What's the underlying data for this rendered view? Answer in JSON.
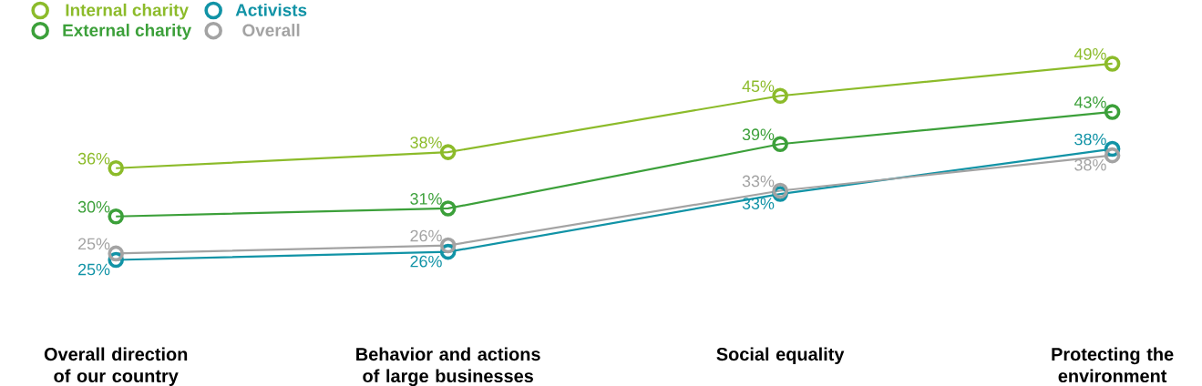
{
  "chart_data": {
    "type": "line",
    "categories": [
      "Overall direction of our country",
      "Behavior and actions of large businesses",
      "Social equality",
      "Protecting the environment"
    ],
    "series": [
      {
        "name": "Internal charity",
        "color": "#8cbb2a",
        "values": [
          36,
          38,
          45,
          49
        ],
        "value_labels": [
          "36%",
          "38%",
          "45%",
          "49%"
        ]
      },
      {
        "name": "External charity",
        "color": "#3ca03a",
        "values": [
          30,
          31,
          39,
          43
        ],
        "value_labels": [
          "30%",
          "31%",
          "39%",
          "43%"
        ]
      },
      {
        "name": "Activists",
        "color": "#1193a6",
        "values": [
          24.6,
          25.6,
          32.8,
          38.4
        ],
        "value_labels": [
          "25%",
          "26%",
          "33%",
          "38%"
        ]
      },
      {
        "name": "Overall",
        "color": "#a3a3a3",
        "values": [
          25.4,
          26.4,
          33.2,
          37.6
        ],
        "value_labels": [
          "25%",
          "26%",
          "33%",
          "38%"
        ]
      }
    ],
    "marker": "circle",
    "line_style": "solid",
    "legend": "top left",
    "grid": false,
    "tick_labels": "x"
  }
}
